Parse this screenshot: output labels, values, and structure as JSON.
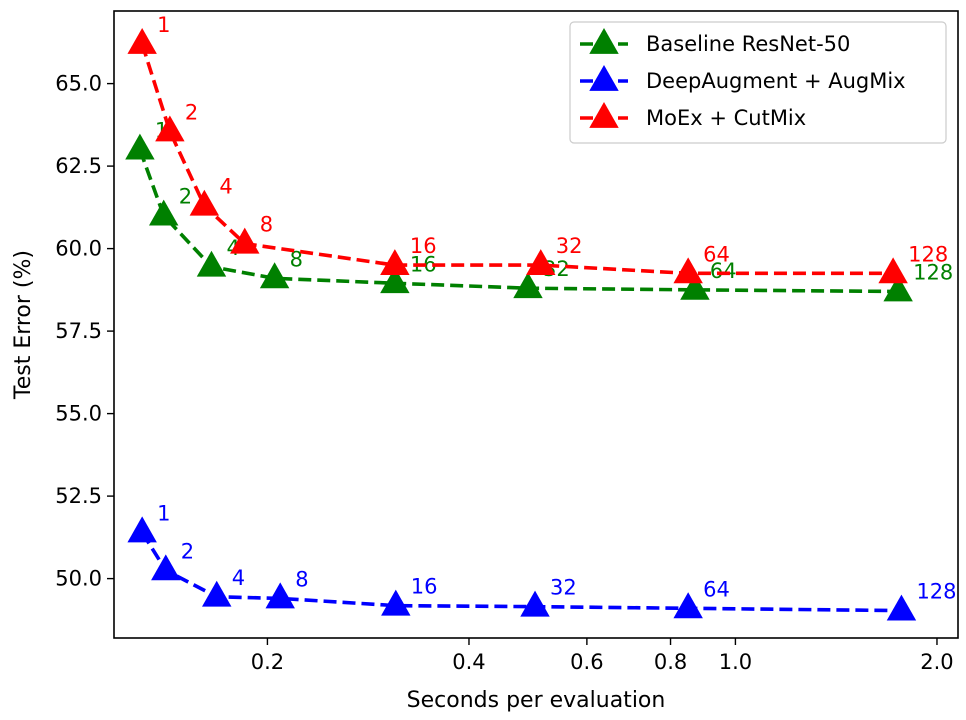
{
  "chart_data": {
    "type": "line",
    "xlabel": "Seconds per evaluation",
    "ylabel": "Test Error (%)",
    "x_scale": "log",
    "xlim": [
      0.118,
      2.15
    ],
    "ylim": [
      48.2,
      67.2
    ],
    "x_ticks": [
      0.2,
      0.4,
      0.6,
      0.8,
      1.0,
      2.0
    ],
    "x_tick_labels": [
      "0.2",
      "0.4",
      "0.6",
      "0.8",
      "1.0",
      "2.0"
    ],
    "y_ticks": [
      50.0,
      52.5,
      55.0,
      57.5,
      60.0,
      62.5,
      65.0
    ],
    "y_tick_labels": [
      "50.0",
      "52.5",
      "55.0",
      "57.5",
      "60.0",
      "62.5",
      "65.0"
    ],
    "grid": false,
    "legend_position": "top-right",
    "series": [
      {
        "name": "Baseline ResNet-50",
        "color": "#008000",
        "marker": "triangle",
        "line_style": "dashed",
        "x": [
          0.129,
          0.14,
          0.165,
          0.205,
          0.31,
          0.49,
          0.87,
          1.75
        ],
        "y": [
          63.0,
          61.0,
          59.45,
          59.1,
          58.95,
          58.8,
          58.75,
          58.7
        ],
        "labels": [
          "1",
          "2",
          "4",
          "8",
          "16",
          "32",
          "64",
          "128"
        ]
      },
      {
        "name": "DeepAugment + AugMix",
        "color": "#0000ff",
        "marker": "triangle",
        "line_style": "dashed",
        "x": [
          0.13,
          0.141,
          0.168,
          0.209,
          0.311,
          0.502,
          0.85,
          1.77
        ],
        "y": [
          51.4,
          50.25,
          49.45,
          49.4,
          49.18,
          49.15,
          49.1,
          49.03
        ],
        "labels": [
          "1",
          "2",
          "4",
          "8",
          "16",
          "32",
          "64",
          "128"
        ]
      },
      {
        "name": "MoEx + CutMix",
        "color": "#ff0000",
        "marker": "triangle",
        "line_style": "dashed",
        "x": [
          0.13,
          0.143,
          0.161,
          0.185,
          0.31,
          0.512,
          0.85,
          1.72
        ],
        "y": [
          66.2,
          63.55,
          61.3,
          60.15,
          59.5,
          59.5,
          59.25,
          59.25
        ],
        "labels": [
          "1",
          "2",
          "4",
          "8",
          "16",
          "32",
          "64",
          "128"
        ]
      }
    ]
  }
}
